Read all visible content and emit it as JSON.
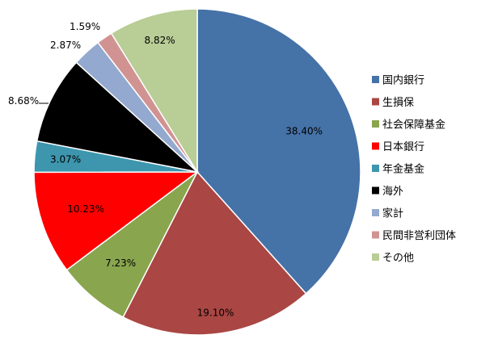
{
  "chart_data": {
    "type": "pie",
    "title": "",
    "legend_position": "right",
    "slices": [
      {
        "label": "国内銀行",
        "value": 38.4,
        "display": "38.40%",
        "color": "#4572A7"
      },
      {
        "label": "生損保",
        "value": 19.1,
        "display": "19.10%",
        "color": "#AA4643"
      },
      {
        "label": "社会保障基金",
        "value": 7.23,
        "display": "7.23%",
        "color": "#89A54E"
      },
      {
        "label": "日本銀行",
        "value": 10.23,
        "display": "10.23%",
        "color": "#FF0000"
      },
      {
        "label": "年金基金",
        "value": 3.07,
        "display": "3.07%",
        "color": "#3D96AE"
      },
      {
        "label": "海外",
        "value": 8.68,
        "display": "8.68%",
        "color": "#000000"
      },
      {
        "label": "家計",
        "value": 2.87,
        "display": "2.87%",
        "color": "#93A9CF"
      },
      {
        "label": "民間非営利団体",
        "value": 1.59,
        "display": "1.59%",
        "color": "#D19392"
      },
      {
        "label": "その他",
        "value": 8.82,
        "display": "8.82%",
        "color": "#B9CD96"
      }
    ]
  }
}
